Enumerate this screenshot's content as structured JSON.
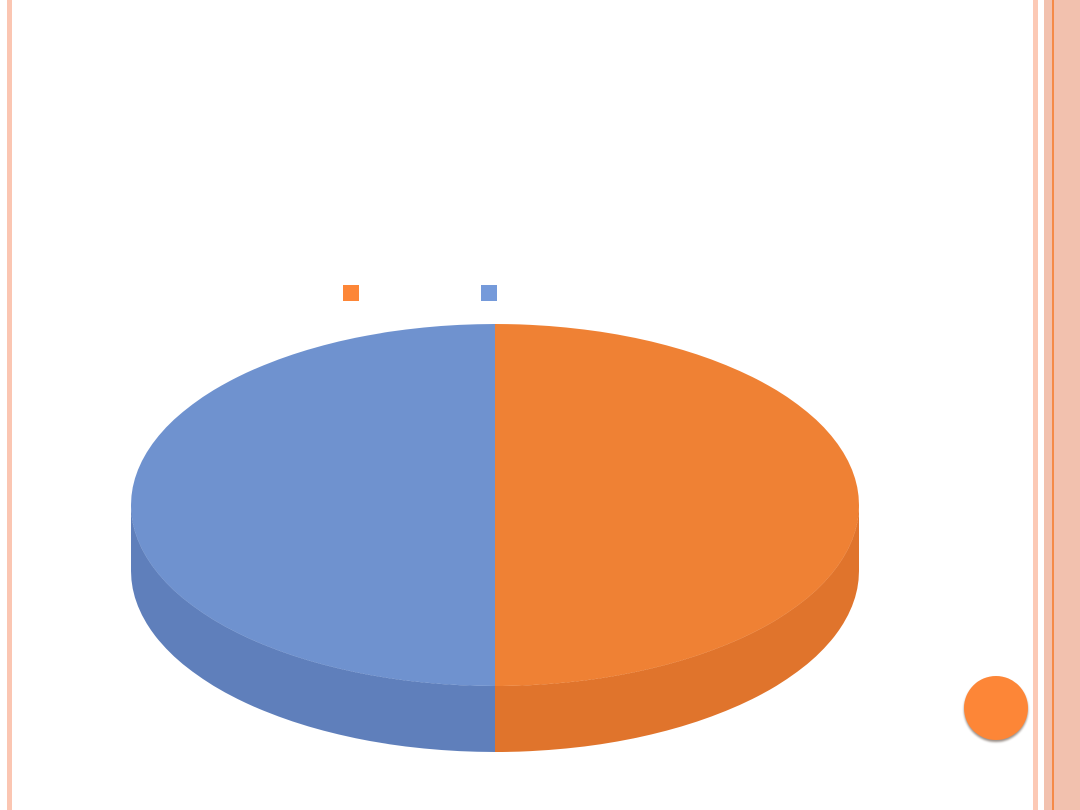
{
  "chart_data": {
    "type": "pie",
    "style": "3d",
    "values": [
      50,
      50
    ],
    "colors": [
      "#ef8134",
      "#6f92cf"
    ],
    "side_colors": [
      "#e0742c",
      "#5f7fbb"
    ],
    "legend": "top",
    "title": ""
  },
  "theme": {
    "accent": "#fd8637",
    "border": "#f2c1ae"
  }
}
